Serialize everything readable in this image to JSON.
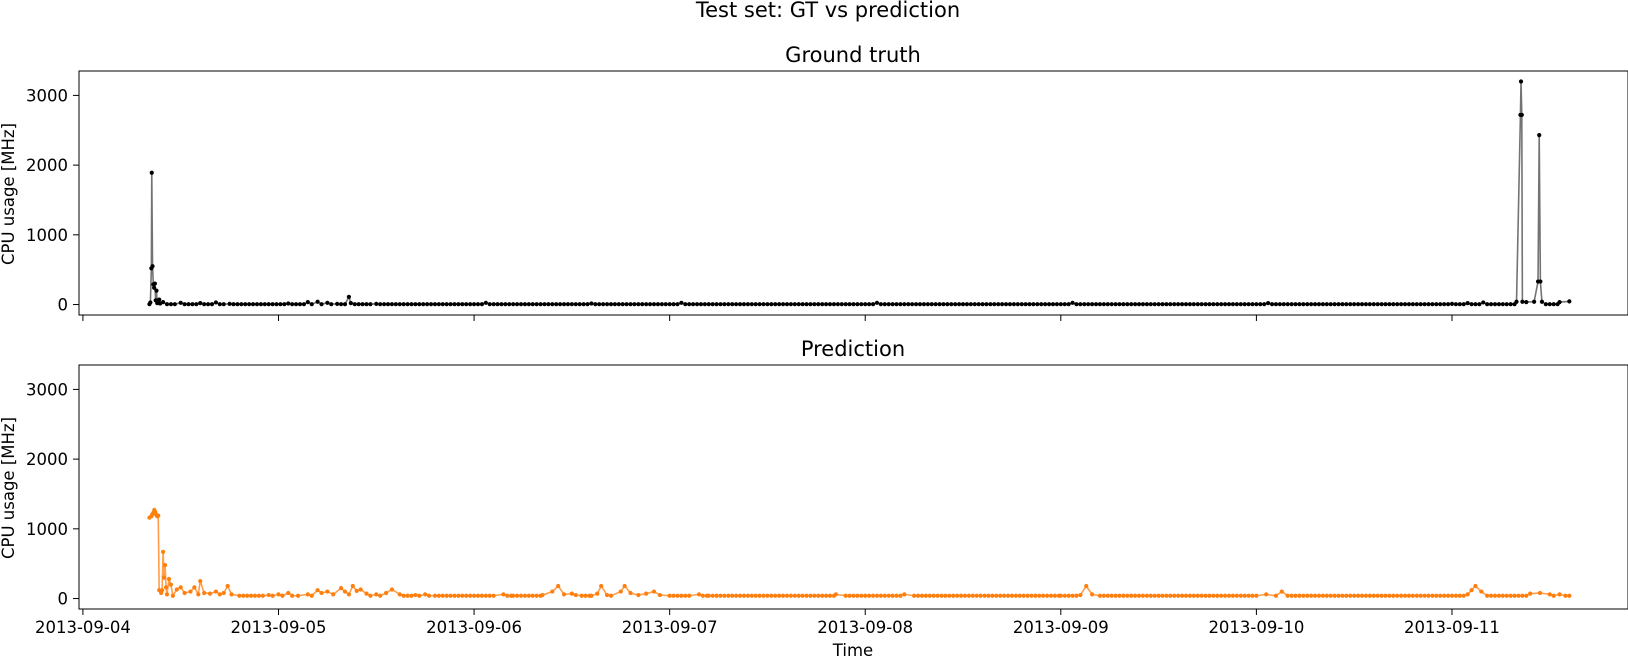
{
  "chart_data": {
    "type": "line",
    "suptitle": "Test set: GT vs prediction",
    "xlabel": "Time",
    "x_tick_labels": [
      "2013-09-04",
      "2013-09-05",
      "2013-09-06",
      "2013-09-07",
      "2013-09-08",
      "2013-09-09",
      "2013-09-10",
      "2013-09-11"
    ],
    "x_tick_values_days": [
      0,
      1,
      2,
      3,
      4,
      5,
      6,
      7
    ],
    "xlim_days": [
      -0.02,
      7.9
    ],
    "panels": [
      {
        "title": "Ground truth",
        "ylabel": "CPU usage [MHz]",
        "ylim": [
          -150,
          3350
        ],
        "y_ticks": [
          0,
          1000,
          2000,
          3000
        ],
        "color": "#000000",
        "line_alpha": 0.55,
        "show_x_tick_labels": false,
        "series_name": "Ground truth",
        "baseline": 5,
        "points": [
          [
            0.34,
            5
          ],
          [
            0.345,
            30
          ],
          [
            0.35,
            520
          ],
          [
            0.352,
            1890
          ],
          [
            0.356,
            550
          ],
          [
            0.36,
            290
          ],
          [
            0.364,
            240
          ],
          [
            0.368,
            300
          ],
          [
            0.372,
            60
          ],
          [
            0.376,
            200
          ],
          [
            0.38,
            20
          ],
          [
            0.39,
            70
          ],
          [
            0.395,
            15
          ],
          [
            0.41,
            35
          ],
          [
            0.5,
            25
          ],
          [
            0.6,
            20
          ],
          [
            0.68,
            30
          ],
          [
            0.75,
            10
          ],
          [
            1.05,
            15
          ],
          [
            1.15,
            35
          ],
          [
            1.2,
            40
          ],
          [
            1.25,
            25
          ],
          [
            1.3,
            10
          ],
          [
            1.36,
            110
          ],
          [
            1.37,
            20
          ],
          [
            1.5,
            10
          ],
          [
            2.06,
            25
          ],
          [
            2.6,
            15
          ],
          [
            3.06,
            25
          ],
          [
            4.06,
            25
          ],
          [
            5.06,
            25
          ],
          [
            6.06,
            20
          ],
          [
            7.0,
            10
          ],
          [
            7.08,
            20
          ],
          [
            7.16,
            30
          ],
          [
            7.33,
            40
          ],
          [
            7.35,
            2720
          ],
          [
            7.353,
            3200
          ],
          [
            7.357,
            2720
          ],
          [
            7.36,
            40
          ],
          [
            7.38,
            35
          ],
          [
            7.42,
            40
          ],
          [
            7.44,
            330
          ],
          [
            7.446,
            2430
          ],
          [
            7.452,
            330
          ],
          [
            7.46,
            40
          ],
          [
            7.55,
            35
          ],
          [
            7.6,
            45
          ]
        ]
      },
      {
        "title": "Prediction",
        "ylabel": "CPU usage [MHz]",
        "ylim": [
          -150,
          3350
        ],
        "y_ticks": [
          0,
          1000,
          2000,
          3000
        ],
        "color": "#ff7f0e",
        "line_alpha": 0.75,
        "show_x_tick_labels": true,
        "series_name": "Prediction",
        "baseline": 40,
        "points": [
          [
            0.34,
            1160
          ],
          [
            0.35,
            1180
          ],
          [
            0.355,
            1210
          ],
          [
            0.36,
            1230
          ],
          [
            0.365,
            1270
          ],
          [
            0.37,
            1240
          ],
          [
            0.375,
            1200
          ],
          [
            0.38,
            1180
          ],
          [
            0.385,
            1190
          ],
          [
            0.39,
            120
          ],
          [
            0.4,
            80
          ],
          [
            0.405,
            120
          ],
          [
            0.41,
            670
          ],
          [
            0.415,
            300
          ],
          [
            0.42,
            480
          ],
          [
            0.425,
            160
          ],
          [
            0.43,
            60
          ],
          [
            0.44,
            280
          ],
          [
            0.45,
            200
          ],
          [
            0.46,
            40
          ],
          [
            0.48,
            130
          ],
          [
            0.5,
            160
          ],
          [
            0.52,
            80
          ],
          [
            0.55,
            100
          ],
          [
            0.57,
            160
          ],
          [
            0.59,
            60
          ],
          [
            0.6,
            250
          ],
          [
            0.62,
            80
          ],
          [
            0.65,
            70
          ],
          [
            0.68,
            100
          ],
          [
            0.7,
            60
          ],
          [
            0.72,
            80
          ],
          [
            0.74,
            180
          ],
          [
            0.76,
            60
          ],
          [
            0.8,
            40
          ],
          [
            0.95,
            50
          ],
          [
            1.0,
            60
          ],
          [
            1.05,
            80
          ],
          [
            1.1,
            40
          ],
          [
            1.15,
            60
          ],
          [
            1.2,
            120
          ],
          [
            1.22,
            80
          ],
          [
            1.25,
            100
          ],
          [
            1.28,
            60
          ],
          [
            1.32,
            150
          ],
          [
            1.34,
            100
          ],
          [
            1.36,
            60
          ],
          [
            1.38,
            180
          ],
          [
            1.4,
            110
          ],
          [
            1.42,
            130
          ],
          [
            1.45,
            70
          ],
          [
            1.5,
            60
          ],
          [
            1.55,
            80
          ],
          [
            1.58,
            130
          ],
          [
            1.62,
            60
          ],
          [
            1.7,
            50
          ],
          [
            1.75,
            60
          ],
          [
            1.8,
            40
          ],
          [
            2.1,
            40
          ],
          [
            2.15,
            60
          ],
          [
            2.2,
            40
          ],
          [
            2.3,
            40
          ],
          [
            2.35,
            50
          ],
          [
            2.4,
            100
          ],
          [
            2.43,
            180
          ],
          [
            2.46,
            60
          ],
          [
            2.5,
            70
          ],
          [
            2.52,
            50
          ],
          [
            2.55,
            40
          ],
          [
            2.6,
            40
          ],
          [
            2.63,
            70
          ],
          [
            2.65,
            180
          ],
          [
            2.68,
            50
          ],
          [
            2.7,
            40
          ],
          [
            2.75,
            100
          ],
          [
            2.77,
            180
          ],
          [
            2.8,
            80
          ],
          [
            2.84,
            50
          ],
          [
            2.88,
            70
          ],
          [
            2.92,
            100
          ],
          [
            2.95,
            50
          ],
          [
            3.0,
            40
          ],
          [
            3.1,
            40
          ],
          [
            3.15,
            60
          ],
          [
            3.2,
            40
          ],
          [
            3.8,
            40
          ],
          [
            3.85,
            60
          ],
          [
            3.9,
            40
          ],
          [
            4.1,
            40
          ],
          [
            4.2,
            60
          ],
          [
            4.25,
            40
          ],
          [
            5.0,
            40
          ],
          [
            5.1,
            50
          ],
          [
            5.13,
            180
          ],
          [
            5.16,
            60
          ],
          [
            5.2,
            40
          ],
          [
            6.0,
            40
          ],
          [
            6.05,
            60
          ],
          [
            6.1,
            40
          ],
          [
            6.13,
            100
          ],
          [
            6.16,
            40
          ],
          [
            7.0,
            40
          ],
          [
            7.08,
            60
          ],
          [
            7.1,
            120
          ],
          [
            7.12,
            180
          ],
          [
            7.15,
            100
          ],
          [
            7.18,
            40
          ],
          [
            7.3,
            40
          ],
          [
            7.4,
            70
          ],
          [
            7.45,
            80
          ],
          [
            7.5,
            60
          ],
          [
            7.52,
            40
          ],
          [
            7.55,
            60
          ],
          [
            7.58,
            40
          ],
          [
            7.6,
            40
          ]
        ]
      }
    ]
  }
}
